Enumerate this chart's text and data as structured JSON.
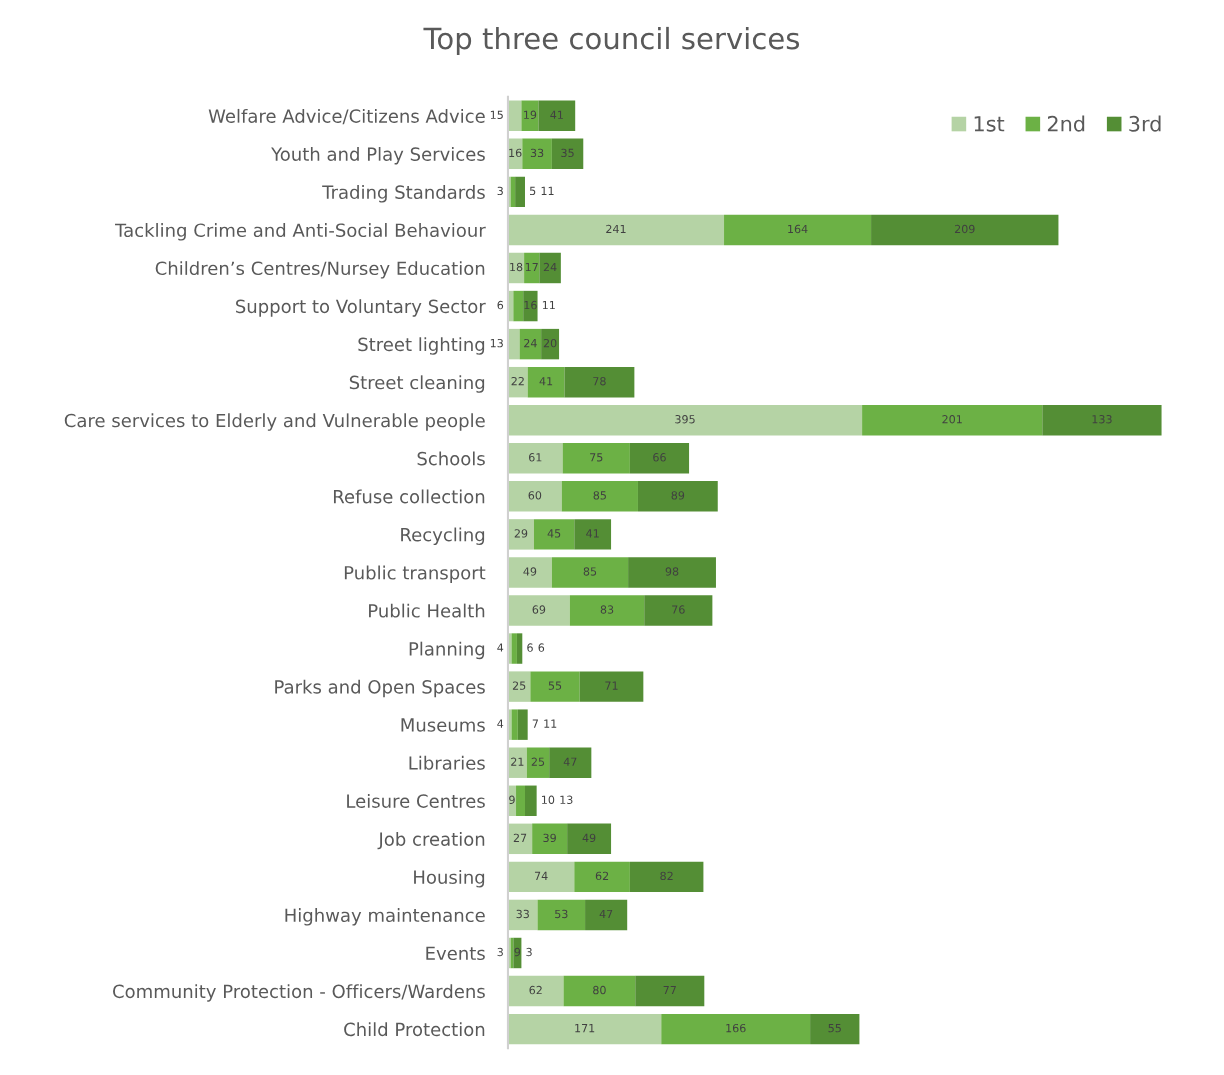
{
  "chart_data": {
    "type": "bar",
    "orientation": "horizontal",
    "stacked": true,
    "title": "Top three council services",
    "categories": [
      "Welfare Advice/Citizens Advice",
      "Youth and Play Services",
      "Trading Standards",
      "Tackling Crime and Anti-Social Behaviour",
      "Children’s Centres/Nursey Education",
      "Support to Voluntary Sector",
      "Street lighting",
      "Street cleaning",
      "Care services to Elderly and Vulnerable people",
      "Schools",
      "Refuse collection",
      "Recycling",
      "Public transport",
      "Public Health",
      "Planning",
      "Parks and Open Spaces",
      "Museums",
      "Libraries",
      "Leisure Centres",
      "Job creation",
      "Housing",
      "Highway maintenance",
      "Events",
      "Community Protection - Officers/Wardens",
      "Child Protection"
    ],
    "series": [
      {
        "name": "1st",
        "color": "#b5d3a5",
        "values": [
          15,
          16,
          3,
          241,
          18,
          6,
          13,
          22,
          395,
          61,
          60,
          29,
          49,
          69,
          4,
          25,
          4,
          21,
          9,
          27,
          74,
          33,
          3,
          62,
          171
        ]
      },
      {
        "name": "2nd",
        "color": "#6cb145",
        "values": [
          19,
          33,
          5,
          164,
          17,
          11,
          24,
          41,
          201,
          75,
          85,
          45,
          85,
          83,
          6,
          55,
          7,
          25,
          10,
          39,
          62,
          53,
          3,
          80,
          166
        ]
      },
      {
        "name": "3rd",
        "color": "#548e35",
        "values": [
          41,
          35,
          11,
          209,
          24,
          16,
          20,
          78,
          133,
          66,
          89,
          41,
          98,
          76,
          6,
          71,
          11,
          47,
          13,
          49,
          82,
          47,
          9,
          77,
          55
        ]
      }
    ],
    "data_labels": true,
    "legend": "top right",
    "grid": false
  }
}
